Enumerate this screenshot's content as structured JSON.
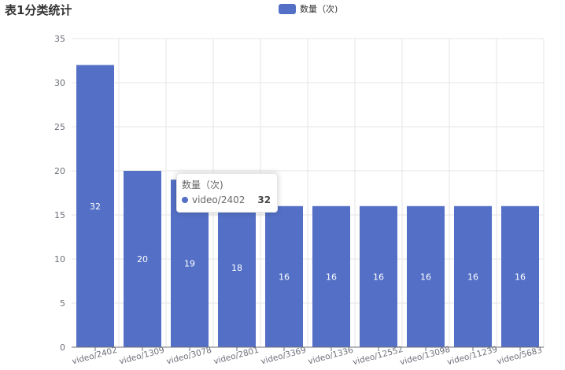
{
  "title": "表1分类统计",
  "legend": {
    "label": "数量（次)"
  },
  "colors": {
    "bar": "#5470c6",
    "grid": "#e6e6e6",
    "axis": "#6e7079",
    "label_text": "#ffffff"
  },
  "tooltip": {
    "series": "数量（次)",
    "category": "video/2402",
    "value": "32"
  },
  "chart_data": {
    "type": "bar",
    "title": "表1分类统计",
    "categories": [
      "video/2402",
      "video/1309",
      "video/3078",
      "video/2801",
      "video/3369",
      "video/1336",
      "video/12552",
      "video/13098",
      "video/11239",
      "video/5683"
    ],
    "series": [
      {
        "name": "数量（次)",
        "values": [
          32,
          20,
          19,
          18,
          16,
          16,
          16,
          16,
          16,
          16
        ]
      }
    ],
    "ylim": [
      0,
      35
    ],
    "yticks": [
      0,
      5,
      10,
      15,
      20,
      25,
      30,
      35
    ],
    "grid": true,
    "legend_position": "top-center"
  }
}
